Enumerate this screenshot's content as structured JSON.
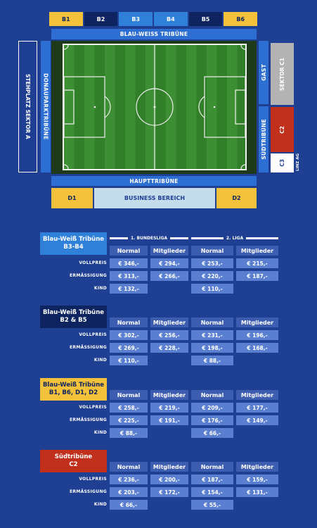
{
  "stadium": {
    "top_blocks": [
      {
        "label": "B1",
        "color": "#f3c13a",
        "text": "dark"
      },
      {
        "label": "B2",
        "color": "#0e2460",
        "text": "light"
      },
      {
        "label": "B3",
        "color": "#2f80d8",
        "text": "light"
      },
      {
        "label": "B4",
        "color": "#2f80d8",
        "text": "light"
      },
      {
        "label": "B5",
        "color": "#0e2460",
        "text": "light"
      },
      {
        "label": "B6",
        "color": "#f3c13a",
        "text": "dark"
      }
    ],
    "top_stand": "BLAU-WEISS TRIBÜNE",
    "left_outer": "STEHPLATZ SEKTOR A",
    "left_stand": "DONAUPARKTRIBÜNE",
    "right_gast": "GAST",
    "right_sued": "SÜDTRIBÜNE",
    "sektor_c1": "SEKTOR C1",
    "c2": "C2",
    "c3": "C3",
    "linz_ag": "LINZ AG",
    "bottom_stand": "HAUPTTRIBÜNE",
    "d1": "D1",
    "business": "BUSINESS BEREICH",
    "d2": "D2"
  },
  "tables": [
    {
      "title": "Blau-Weiß Tribüne\nB3-B4",
      "title_color": "#2f80d8",
      "leagues": [
        "1. BUNDESLIGA",
        "2. LIGA"
      ],
      "headers": [
        "Normal",
        "Mitglieder",
        "Normal",
        "Mitglieder"
      ],
      "rows": [
        {
          "label": "VOLLPREIS",
          "cells": [
            "€ 346,-",
            "€ 294,-",
            "€ 253,-",
            "€ 215,-"
          ]
        },
        {
          "label": "ERMÄSSIGUNG",
          "cells": [
            "€ 313,-",
            "€ 266,-",
            "€ 220,-",
            "€ 187,-"
          ]
        },
        {
          "label": "KIND",
          "cells": [
            "€ 132,-",
            "",
            "€ 110,-",
            ""
          ]
        }
      ]
    },
    {
      "title": "Blau-Weiß Tribüne\nB2 & B5",
      "title_color": "#0e2460",
      "headers": [
        "Normal",
        "Mitglieder",
        "Normal",
        "Mitglieder"
      ],
      "rows": [
        {
          "label": "VOLLPREIS",
          "cells": [
            "€ 302,-",
            "€ 256,-",
            "€ 231,-",
            "€ 196,-"
          ]
        },
        {
          "label": "ERMÄSSIGUNG",
          "cells": [
            "€ 269,-",
            "€ 228,-",
            "€ 198,-",
            "€ 168,-"
          ]
        },
        {
          "label": "KIND",
          "cells": [
            "€ 110,-",
            "",
            "€ 88,-",
            ""
          ]
        }
      ]
    },
    {
      "title": "Blau-Weiß Tribüne\nB1, B6, D1, D2",
      "title_color": "#f3c13a",
      "headers": [
        "Normal",
        "Mitglieder",
        "Normal",
        "Mitglieder"
      ],
      "rows": [
        {
          "label": "VOLLPREIS",
          "cells": [
            "€ 258,-",
            "€ 219,-",
            "€ 209,-",
            "€ 177,-"
          ]
        },
        {
          "label": "ERMÄSSIGUNG",
          "cells": [
            "€ 225,-",
            "€ 191,-",
            "€ 176,-",
            "€ 149,-"
          ]
        },
        {
          "label": "KIND",
          "cells": [
            "€ 88,-",
            "",
            "€ 66,-",
            ""
          ]
        }
      ]
    },
    {
      "title": "Südtribüne\nC2",
      "title_color": "#c0301c",
      "headers": [
        "Normal",
        "Mitglieder",
        "Normal",
        "Mitglieder"
      ],
      "rows": [
        {
          "label": "VOLLPREIS",
          "cells": [
            "€ 236,-",
            "€ 200,-",
            "€ 187,-",
            "€ 159,-"
          ]
        },
        {
          "label": "ERMÄSSIGUNG",
          "cells": [
            "€ 203,-",
            "€ 172,-",
            "€ 154,-",
            "€ 131,-"
          ]
        },
        {
          "label": "KIND",
          "cells": [
            "€ 66,-",
            "",
            "€ 55,-",
            ""
          ]
        }
      ]
    }
  ]
}
